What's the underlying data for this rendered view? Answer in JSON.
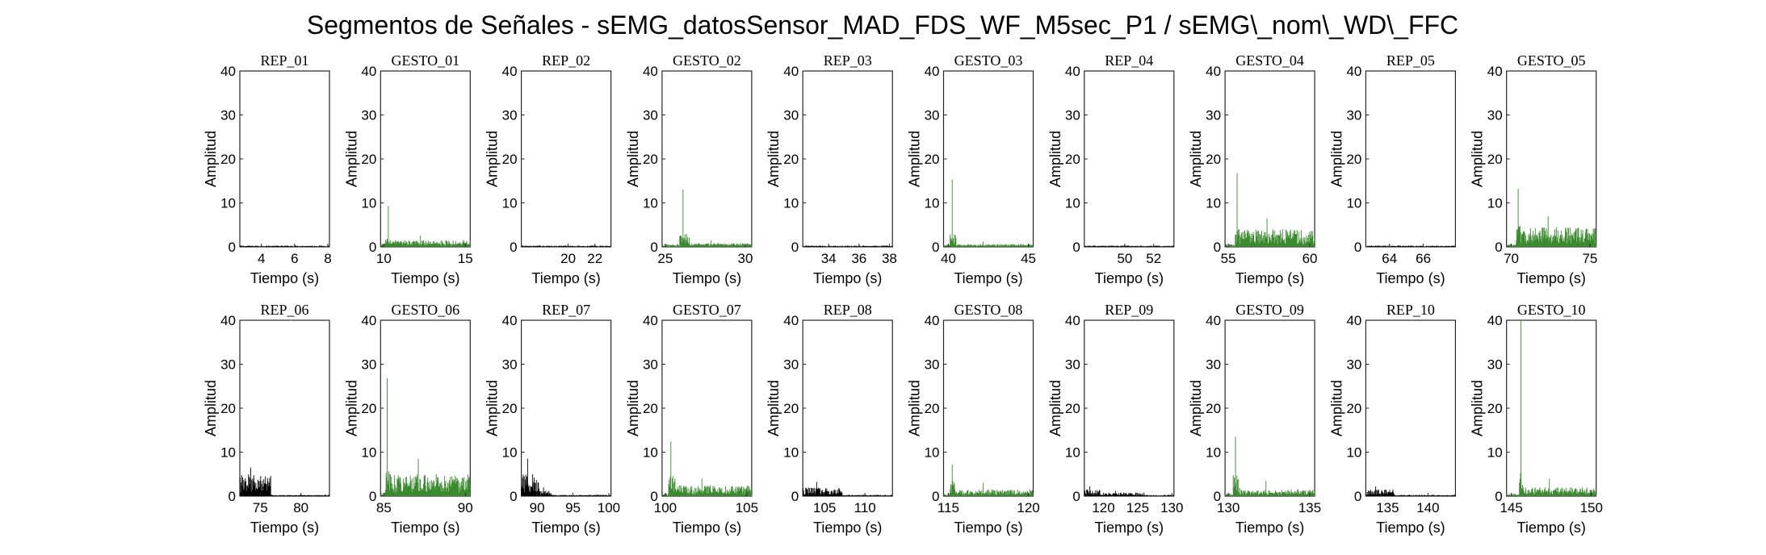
{
  "figure": {
    "title": "Segmentos de Señales - sEMG_datosSensor_MAD_FDS_WF_M5sec_P1 / sEMG\\_nom\\_WD\\_FFC"
  },
  "colors": {
    "rep": "#000000",
    "gesto": "#3a8a2e"
  },
  "chart_data": [
    {
      "type": "line",
      "title": "REP_01",
      "kind": "rep",
      "row": 0,
      "col": 0,
      "xlabel": "Tiempo (s)",
      "ylabel": "Amplitud",
      "xlim": [
        2.7,
        8.1
      ],
      "ylim": [
        0,
        40
      ],
      "xticks": [
        4,
        6,
        8
      ],
      "yticks": [
        0,
        10,
        20,
        30,
        40
      ],
      "signal": {
        "t_start": 2.7,
        "t_end": 8.1,
        "base_amp": 0.3,
        "bursts": []
      }
    },
    {
      "type": "line",
      "title": "GESTO_01",
      "kind": "gesto",
      "row": 0,
      "col": 1,
      "xlabel": "Tiempo (s)",
      "ylabel": "Amplitud",
      "xlim": [
        9.8,
        15.3
      ],
      "ylim": [
        0,
        40
      ],
      "xticks": [
        10,
        15
      ],
      "yticks": [
        0,
        10,
        20,
        30,
        40
      ],
      "signal": {
        "t_start": 9.8,
        "t_end": 15.3,
        "base_amp": 0.8,
        "bursts": [
          {
            "t0": 10.1,
            "t1": 10.6,
            "amp": 2.5,
            "peak": 9.3
          },
          {
            "t0": 10.6,
            "t1": 15.3,
            "amp": 1.5,
            "peak": 2.6
          }
        ]
      }
    },
    {
      "type": "line",
      "title": "REP_02",
      "kind": "rep",
      "row": 0,
      "col": 2,
      "xlabel": "Tiempo (s)",
      "ylabel": "Amplitud",
      "xlim": [
        16.5,
        23.2
      ],
      "ylim": [
        0,
        40
      ],
      "xticks": [
        20,
        22
      ],
      "yticks": [
        0,
        10,
        20,
        30,
        40
      ],
      "signal": {
        "t_start": 16.5,
        "t_end": 23.2,
        "base_amp": 0.3,
        "bursts": []
      }
    },
    {
      "type": "line",
      "title": "GESTO_02",
      "kind": "gesto",
      "row": 0,
      "col": 3,
      "xlabel": "Tiempo (s)",
      "ylabel": "Amplitud",
      "xlim": [
        24.8,
        30.4
      ],
      "ylim": [
        0,
        40
      ],
      "xticks": [
        25,
        30
      ],
      "yticks": [
        0,
        10,
        20,
        30,
        40
      ],
      "signal": {
        "t_start": 24.8,
        "t_end": 30.4,
        "base_amp": 0.6,
        "bursts": [
          {
            "t0": 25.9,
            "t1": 26.5,
            "amp": 3.0,
            "peak": 13.0
          },
          {
            "t0": 26.5,
            "t1": 30.4,
            "amp": 0.9,
            "peak": 1.5
          }
        ]
      }
    },
    {
      "type": "line",
      "title": "REP_03",
      "kind": "rep",
      "row": 0,
      "col": 4,
      "xlabel": "Tiempo (s)",
      "ylabel": "Amplitud",
      "xlim": [
        32.3,
        38.2
      ],
      "ylim": [
        0,
        40
      ],
      "xticks": [
        34,
        36,
        38
      ],
      "yticks": [
        0,
        10,
        20,
        30,
        40
      ],
      "signal": {
        "t_start": 32.3,
        "t_end": 38.2,
        "base_amp": 0.3,
        "bursts": []
      }
    },
    {
      "type": "line",
      "title": "GESTO_03",
      "kind": "gesto",
      "row": 0,
      "col": 5,
      "xlabel": "Tiempo (s)",
      "ylabel": "Amplitud",
      "xlim": [
        39.7,
        45.3
      ],
      "ylim": [
        0,
        40
      ],
      "xticks": [
        40,
        45
      ],
      "yticks": [
        0,
        10,
        20,
        30,
        40
      ],
      "signal": {
        "t_start": 39.7,
        "t_end": 45.3,
        "base_amp": 0.5,
        "bursts": [
          {
            "t0": 40.1,
            "t1": 40.5,
            "amp": 3.0,
            "peak": 15.3
          },
          {
            "t0": 40.5,
            "t1": 45.3,
            "amp": 0.6,
            "peak": 1.2
          }
        ]
      }
    },
    {
      "type": "line",
      "title": "REP_04",
      "kind": "rep",
      "row": 0,
      "col": 6,
      "xlabel": "Tiempo (s)",
      "ylabel": "Amplitud",
      "xlim": [
        47.2,
        53.4
      ],
      "ylim": [
        0,
        40
      ],
      "xticks": [
        50,
        52
      ],
      "yticks": [
        0,
        10,
        20,
        30,
        40
      ],
      "signal": {
        "t_start": 47.2,
        "t_end": 53.4,
        "base_amp": 0.3,
        "bursts": []
      }
    },
    {
      "type": "line",
      "title": "GESTO_04",
      "kind": "gesto",
      "row": 0,
      "col": 7,
      "xlabel": "Tiempo (s)",
      "ylabel": "Amplitud",
      "xlim": [
        54.8,
        60.3
      ],
      "ylim": [
        0,
        40
      ],
      "xticks": [
        55,
        60
      ],
      "yticks": [
        0,
        10,
        20,
        30,
        40
      ],
      "signal": {
        "t_start": 54.8,
        "t_end": 60.3,
        "base_amp": 0.6,
        "bursts": [
          {
            "t0": 55.4,
            "t1": 55.8,
            "amp": 4.0,
            "peak": 16.8
          },
          {
            "t0": 55.8,
            "t1": 60.3,
            "amp": 4.0,
            "peak": 6.5
          }
        ]
      }
    },
    {
      "type": "line",
      "title": "REP_05",
      "kind": "rep",
      "row": 0,
      "col": 8,
      "xlabel": "Tiempo (s)",
      "ylabel": "Amplitud",
      "xlim": [
        62.6,
        67.9
      ],
      "ylim": [
        0,
        40
      ],
      "xticks": [
        64,
        66
      ],
      "yticks": [
        0,
        10,
        20,
        30,
        40
      ],
      "signal": {
        "t_start": 62.6,
        "t_end": 67.9,
        "base_amp": 0.3,
        "bursts": []
      }
    },
    {
      "type": "line",
      "title": "GESTO_05",
      "kind": "gesto",
      "row": 0,
      "col": 9,
      "xlabel": "Tiempo (s)",
      "ylabel": "Amplitud",
      "xlim": [
        69.7,
        75.4
      ],
      "ylim": [
        0,
        40
      ],
      "xticks": [
        70,
        75
      ],
      "yticks": [
        0,
        10,
        20,
        30,
        40
      ],
      "signal": {
        "t_start": 69.7,
        "t_end": 75.4,
        "base_amp": 0.6,
        "bursts": [
          {
            "t0": 70.3,
            "t1": 70.7,
            "amp": 5.0,
            "peak": 13.2
          },
          {
            "t0": 70.7,
            "t1": 75.4,
            "amp": 4.5,
            "peak": 7.0
          }
        ]
      }
    },
    {
      "type": "line",
      "title": "REP_06",
      "kind": "rep",
      "row": 1,
      "col": 0,
      "xlabel": "Tiempo (s)",
      "ylabel": "Amplitud",
      "xlim": [
        72.5,
        83.5
      ],
      "ylim": [
        0,
        40
      ],
      "xticks": [
        75,
        80
      ],
      "yticks": [
        0,
        10,
        20,
        30,
        40
      ],
      "signal": {
        "t_start": 72.5,
        "t_end": 83.5,
        "base_amp": 0.3,
        "bursts": [
          {
            "t0": 72.5,
            "t1": 76.3,
            "amp": 5.0,
            "peak": 6.5
          }
        ]
      }
    },
    {
      "type": "line",
      "title": "GESTO_06",
      "kind": "gesto",
      "row": 1,
      "col": 1,
      "xlabel": "Tiempo (s)",
      "ylabel": "Amplitud",
      "xlim": [
        84.8,
        90.3
      ],
      "ylim": [
        0,
        40
      ],
      "xticks": [
        85,
        90
      ],
      "yticks": [
        0,
        10,
        20,
        30,
        40
      ],
      "signal": {
        "t_start": 84.8,
        "t_end": 90.3,
        "base_amp": 0.8,
        "bursts": [
          {
            "t0": 85.1,
            "t1": 85.4,
            "amp": 6.0,
            "peak": 26.8
          },
          {
            "t0": 85.4,
            "t1": 90.3,
            "amp": 5.0,
            "peak": 8.5
          }
        ]
      }
    },
    {
      "type": "line",
      "title": "REP_07",
      "kind": "rep",
      "row": 1,
      "col": 2,
      "xlabel": "Tiempo (s)",
      "ylabel": "Amplitud",
      "xlim": [
        87.8,
        100.3
      ],
      "ylim": [
        0,
        40
      ],
      "xticks": [
        90,
        95,
        100
      ],
      "yticks": [
        0,
        10,
        20,
        30,
        40
      ],
      "signal": {
        "t_start": 87.8,
        "t_end": 100.3,
        "base_amp": 0.3,
        "bursts": [
          {
            "t0": 87.8,
            "t1": 90.3,
            "amp": 5.0,
            "peak": 8.5
          },
          {
            "t0": 90.3,
            "t1": 92.0,
            "amp": 1.2,
            "peak": 2.0
          }
        ]
      }
    },
    {
      "type": "line",
      "title": "GESTO_07",
      "kind": "gesto",
      "row": 1,
      "col": 3,
      "xlabel": "Tiempo (s)",
      "ylabel": "Amplitud",
      "xlim": [
        99.8,
        105.3
      ],
      "ylim": [
        0,
        40
      ],
      "xticks": [
        100,
        105
      ],
      "yticks": [
        0,
        10,
        20,
        30,
        40
      ],
      "signal": {
        "t_start": 99.8,
        "t_end": 105.3,
        "base_amp": 0.6,
        "bursts": [
          {
            "t0": 100.2,
            "t1": 100.6,
            "amp": 5.0,
            "peak": 12.4
          },
          {
            "t0": 100.6,
            "t1": 105.3,
            "amp": 2.5,
            "peak": 4.0
          }
        ]
      }
    },
    {
      "type": "line",
      "title": "REP_08",
      "kind": "rep",
      "row": 1,
      "col": 4,
      "xlabel": "Tiempo (s)",
      "ylabel": "Amplitud",
      "xlim": [
        102.3,
        113.4
      ],
      "ylim": [
        0,
        40
      ],
      "xticks": [
        105,
        110
      ],
      "yticks": [
        0,
        10,
        20,
        30,
        40
      ],
      "signal": {
        "t_start": 102.3,
        "t_end": 113.4,
        "base_amp": 0.3,
        "bursts": [
          {
            "t0": 102.3,
            "t1": 107.2,
            "amp": 2.0,
            "peak": 3.2
          }
        ]
      }
    },
    {
      "type": "line",
      "title": "GESTO_08",
      "kind": "gesto",
      "row": 1,
      "col": 5,
      "xlabel": "Tiempo (s)",
      "ylabel": "Amplitud",
      "xlim": [
        114.7,
        120.3
      ],
      "ylim": [
        0,
        40
      ],
      "xticks": [
        115,
        120
      ],
      "yticks": [
        0,
        10,
        20,
        30,
        40
      ],
      "signal": {
        "t_start": 114.7,
        "t_end": 120.3,
        "base_amp": 0.6,
        "bursts": [
          {
            "t0": 115.1,
            "t1": 115.5,
            "amp": 3.5,
            "peak": 7.2
          },
          {
            "t0": 115.5,
            "t1": 120.3,
            "amp": 1.5,
            "peak": 3.0
          }
        ]
      }
    },
    {
      "type": "line",
      "title": "REP_09",
      "kind": "rep",
      "row": 1,
      "col": 6,
      "xlabel": "Tiempo (s)",
      "ylabel": "Amplitud",
      "xlim": [
        117.2,
        130.3
      ],
      "ylim": [
        0,
        40
      ],
      "xticks": [
        120,
        125,
        130
      ],
      "yticks": [
        0,
        10,
        20,
        30,
        40
      ],
      "signal": {
        "t_start": 117.2,
        "t_end": 130.3,
        "base_amp": 0.3,
        "bursts": [
          {
            "t0": 117.2,
            "t1": 119.5,
            "amp": 1.5,
            "peak": 2.2
          },
          {
            "t0": 119.5,
            "t1": 126.0,
            "amp": 0.8,
            "peak": 1.2
          }
        ]
      }
    },
    {
      "type": "line",
      "title": "GESTO_09",
      "kind": "gesto",
      "row": 1,
      "col": 7,
      "xlabel": "Tiempo (s)",
      "ylabel": "Amplitud",
      "xlim": [
        129.8,
        135.3
      ],
      "ylim": [
        0,
        40
      ],
      "xticks": [
        130,
        135
      ],
      "yticks": [
        0,
        10,
        20,
        30,
        40
      ],
      "signal": {
        "t_start": 129.8,
        "t_end": 135.3,
        "base_amp": 0.6,
        "bursts": [
          {
            "t0": 130.3,
            "t1": 130.7,
            "amp": 5.0,
            "peak": 13.5
          },
          {
            "t0": 130.7,
            "t1": 135.3,
            "amp": 1.5,
            "peak": 3.5
          }
        ]
      }
    },
    {
      "type": "line",
      "title": "REP_10",
      "kind": "rep",
      "row": 1,
      "col": 8,
      "xlabel": "Tiempo (s)",
      "ylabel": "Amplitud",
      "xlim": [
        132.3,
        143.4
      ],
      "ylim": [
        0,
        40
      ],
      "xticks": [
        135,
        140
      ],
      "yticks": [
        0,
        10,
        20,
        30,
        40
      ],
      "signal": {
        "t_start": 132.3,
        "t_end": 143.4,
        "base_amp": 0.3,
        "bursts": [
          {
            "t0": 132.3,
            "t1": 135.8,
            "amp": 1.5,
            "peak": 2.2
          }
        ]
      }
    },
    {
      "type": "line",
      "title": "GESTO_10",
      "kind": "gesto",
      "row": 1,
      "col": 9,
      "xlabel": "Tiempo (s)",
      "ylabel": "Amplitud",
      "xlim": [
        144.7,
        150.3
      ],
      "ylim": [
        0,
        40
      ],
      "xticks": [
        145,
        150
      ],
      "yticks": [
        0,
        10,
        20,
        30,
        40
      ],
      "signal": {
        "t_start": 144.7,
        "t_end": 150.3,
        "base_amp": 0.6,
        "bursts": [
          {
            "t0": 145.5,
            "t1": 145.8,
            "amp": 6.0,
            "peak": 40.0
          },
          {
            "t0": 145.8,
            "t1": 150.3,
            "amp": 2.0,
            "peak": 4.0
          }
        ]
      }
    }
  ]
}
